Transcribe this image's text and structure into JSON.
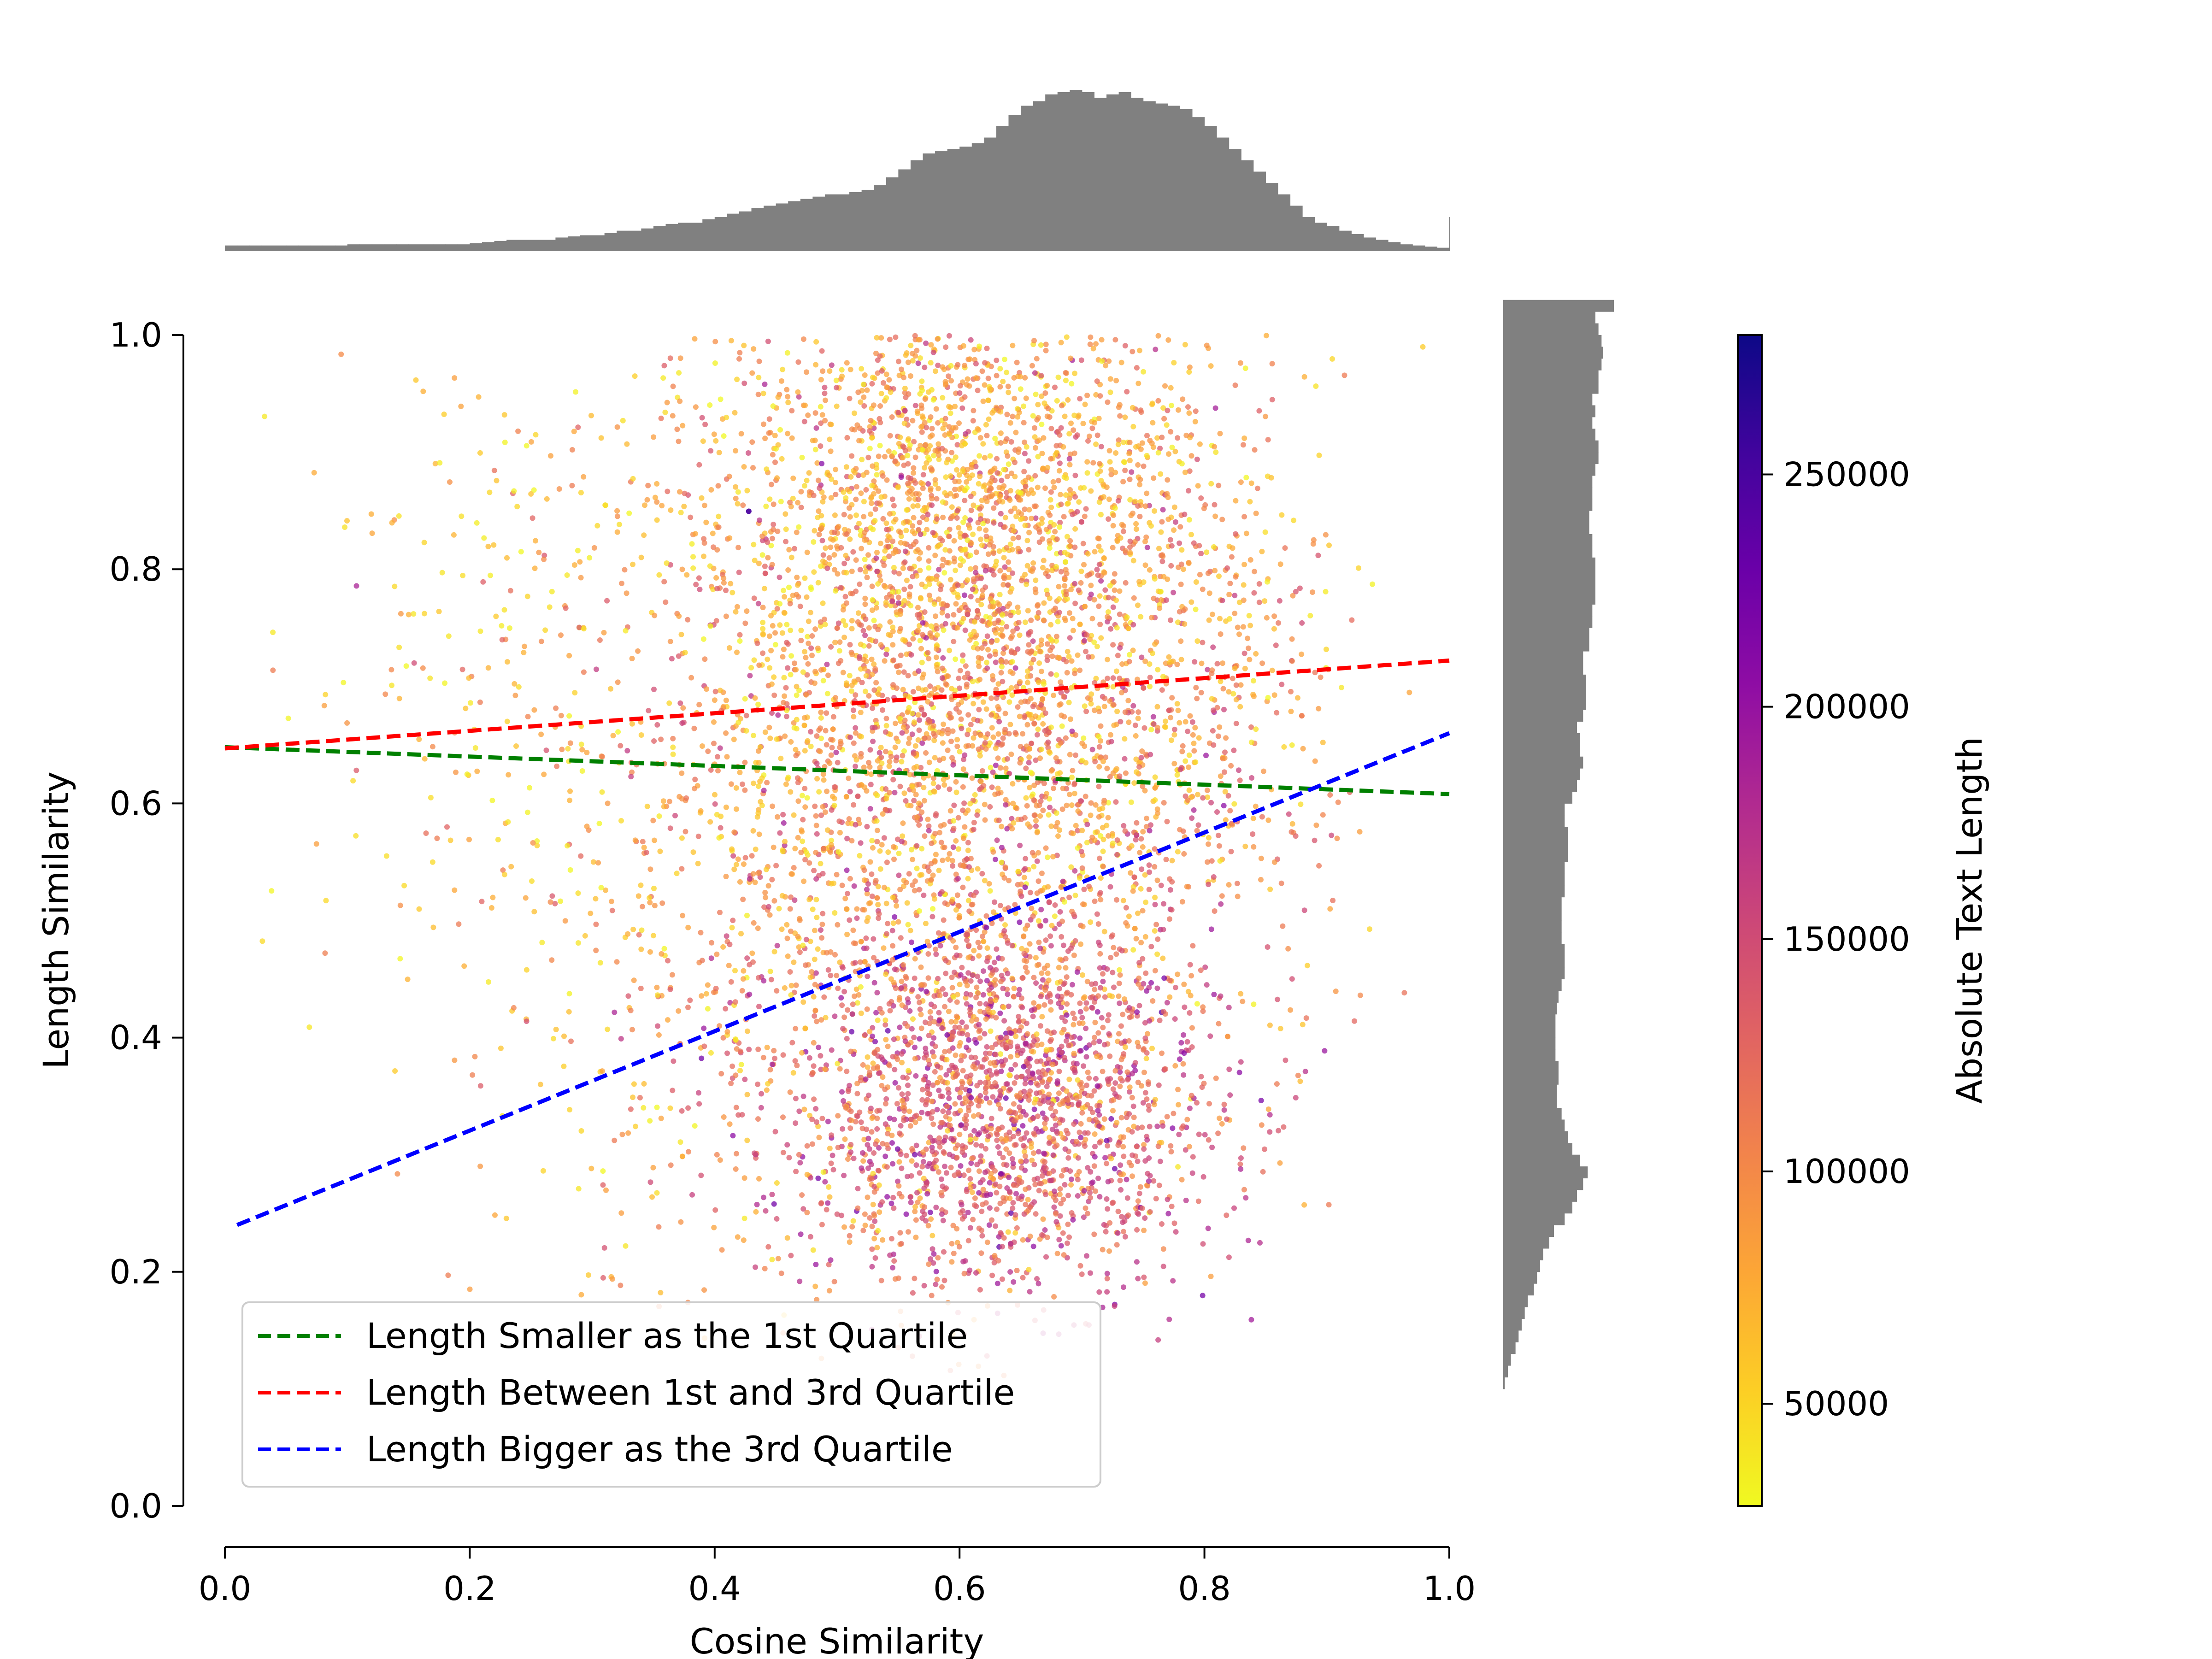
{
  "chart_data": [
    {
      "id": "main-scatter",
      "type": "scatter",
      "xlabel": "Cosine Similarity",
      "ylabel": "Length Similarity",
      "xlim": [
        0.0,
        1.0
      ],
      "ylim": [
        0.0,
        1.0
      ],
      "xticks": [
        "0.0",
        "0.2",
        "0.4",
        "0.6",
        "0.8",
        "1.0"
      ],
      "yticks": [
        "0.0",
        "0.2",
        "0.4",
        "0.6",
        "0.8",
        "1.0"
      ],
      "grid": false,
      "legend_position": "lower-left",
      "series": [
        {
          "name": "Length Smaller as the 1st Quartile",
          "color": "#008000",
          "style": "dashed",
          "x": [
            0.0,
            1.0
          ],
          "y": [
            0.648,
            0.608
          ]
        },
        {
          "name": "Length Between 1st and 3rd Quartile",
          "color": "#ff0000",
          "style": "dashed",
          "x": [
            0.0,
            1.0
          ],
          "y": [
            0.647,
            0.722
          ]
        },
        {
          "name": "Length Bigger as the 3rd Quartile",
          "color": "#0000ff",
          "style": "dashed",
          "x": [
            0.01,
            1.0
          ],
          "y": [
            0.24,
            0.66
          ]
        }
      ],
      "scatter_clusters": [
        {
          "cx": 0.6,
          "cy": 0.85,
          "sx": 0.1,
          "sy": 0.11,
          "n": 2200,
          "c_mean": 85000
        },
        {
          "cx": 0.62,
          "cy": 0.62,
          "sx": 0.11,
          "sy": 0.12,
          "n": 1800,
          "c_mean": 100000
        },
        {
          "cx": 0.63,
          "cy": 0.34,
          "sx": 0.09,
          "sy": 0.08,
          "n": 2000,
          "c_mean": 135000
        },
        {
          "cx": 0.42,
          "cy": 0.55,
          "sx": 0.1,
          "sy": 0.2,
          "n": 700,
          "c_mean": 90000
        },
        {
          "cx": 0.22,
          "cy": 0.72,
          "sx": 0.1,
          "sy": 0.18,
          "n": 250,
          "c_mean": 60000
        },
        {
          "cx": 0.8,
          "cy": 0.75,
          "sx": 0.06,
          "sy": 0.15,
          "n": 350,
          "c_mean": 95000
        }
      ]
    },
    {
      "id": "top-histogram",
      "type": "bar",
      "orientation": "vertical",
      "color": "#808080",
      "xlim": [
        0.0,
        1.0
      ],
      "bin_width": 0.01,
      "bin_start": 0.0,
      "values": [
        5,
        5,
        5,
        5,
        5,
        5,
        5,
        5,
        5,
        5,
        6,
        6,
        6,
        6,
        6,
        6,
        6,
        6,
        6,
        6,
        7,
        8,
        9,
        10,
        10,
        10,
        10,
        12,
        13,
        14,
        14,
        16,
        18,
        18,
        20,
        22,
        24,
        25,
        25,
        28,
        30,
        33,
        35,
        38,
        40,
        42,
        44,
        46,
        48,
        50,
        50,
        52,
        54,
        58,
        65,
        72,
        80,
        86,
        88,
        90,
        92,
        95,
        100,
        110,
        120,
        128,
        132,
        138,
        140,
        142,
        140,
        135,
        138,
        140,
        135,
        132,
        130,
        128,
        125,
        118,
        110,
        100,
        90,
        80,
        70,
        60,
        50,
        40,
        30,
        25,
        22,
        18,
        15,
        12,
        10,
        8,
        6,
        5,
        4,
        3,
        30
      ]
    },
    {
      "id": "right-histogram",
      "type": "bar",
      "orientation": "horizontal",
      "color": "#808080",
      "ylim": [
        0.0,
        1.0
      ],
      "bin_width": 0.01,
      "bin_start": 0.1,
      "values": [
        1,
        3,
        5,
        8,
        10,
        12,
        14,
        16,
        20,
        22,
        24,
        26,
        30,
        33,
        40,
        45,
        48,
        52,
        55,
        50,
        45,
        42,
        40,
        38,
        35,
        35,
        36,
        36,
        34,
        34,
        34,
        34,
        35,
        36,
        38,
        40,
        40,
        40,
        38,
        38,
        38,
        38,
        40,
        40,
        40,
        42,
        42,
        42,
        40,
        40,
        45,
        48,
        50,
        52,
        50,
        50,
        48,
        52,
        54,
        54,
        54,
        52,
        52,
        56,
        56,
        58,
        58,
        60,
        60,
        60,
        60,
        58,
        58,
        56,
        56,
        58,
        58,
        58,
        60,
        62,
        62,
        60,
        58,
        60,
        58,
        62,
        62,
        64,
        65,
        64,
        62,
        60,
        72
      ]
    },
    {
      "id": "colorbar",
      "type": "heatmap",
      "colormap": "plasma_r",
      "label": "Absolute Text Length",
      "range": [
        28000,
        280000
      ],
      "ticks": [
        "50000",
        "100000",
        "150000",
        "200000",
        "250000"
      ],
      "tick_values": [
        50000,
        100000,
        150000,
        200000,
        250000
      ]
    }
  ]
}
